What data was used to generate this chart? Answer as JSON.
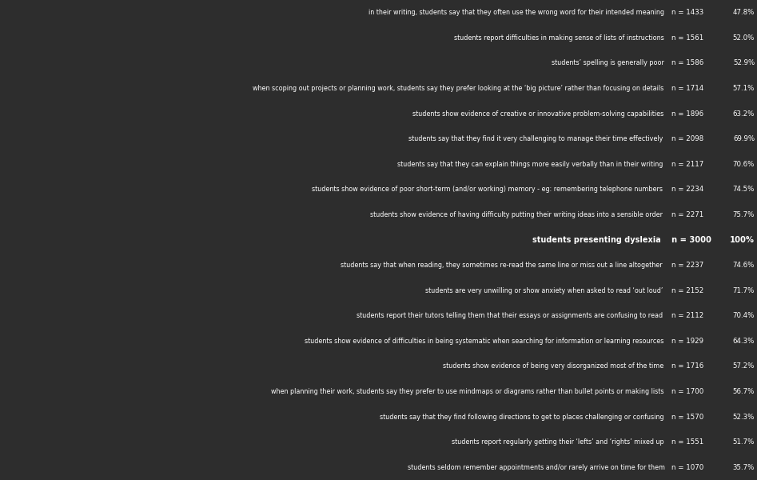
{
  "background_color": "#2d2d2d",
  "bar_color_blue": "#4a7ab5",
  "bar_color_purple": "#7b6fc4",
  "title_row": {
    "label": "students presenting dyslexia",
    "n": "n = 3000",
    "pct": "100%",
    "value": 100.0
  },
  "rows_above": [
    {
      "label": "in their writing, students say that they often use the wrong word for their intended meaning",
      "n": "n = 1433",
      "pct": "47.8%",
      "value": 47.8
    },
    {
      "label": "students report difficulties in making sense of lists of instructions",
      "n": "n = 1561",
      "pct": "52.0%",
      "value": 52.0
    },
    {
      "label": "students’ spelling is generally poor",
      "n": "n = 1586",
      "pct": "52.9%",
      "value": 52.9
    },
    {
      "label": "when scoping out projects or planning work, students say they prefer looking at the ‘big picture’ rather than focusing on details",
      "n": "n = 1714",
      "pct": "57.1%",
      "value": 57.1
    },
    {
      "label": "students show evidence of creative or innovative problem-solving capabilities",
      "n": "n = 1896",
      "pct": "63.2%",
      "value": 63.2
    },
    {
      "label": "students say that they find it very challenging to manage their time effectively",
      "n": "n = 2098",
      "pct": "69.9%",
      "value": 69.9
    },
    {
      "label": "students say that they can explain things more easily verbally than in their writing",
      "n": "n = 2117",
      "pct": "70.6%",
      "value": 70.6
    },
    {
      "label": "students show evidence of poor short-term (and/or working) memory - eg: remembering telephone numbers",
      "n": "n = 2234",
      "pct": "74.5%",
      "value": 74.5
    },
    {
      "label": "students show evidence of having difficulty putting their writing ideas into a sensible order",
      "n": "n = 2271",
      "pct": "75.7%",
      "value": 75.7
    }
  ],
  "rows_below": [
    {
      "label": "students say that when reading, they sometimes re-read the same line or miss out a line altogether",
      "n": "n = 2237",
      "pct": "74.6%",
      "value": 74.6
    },
    {
      "label": "students are very unwilling or show anxiety when asked to read ‘out loud’",
      "n": "n = 2152",
      "pct": "71.7%",
      "value": 71.7
    },
    {
      "label": "students report their tutors telling them that their essays or assignments are confusing to read",
      "n": "n = 2112",
      "pct": "70.4%",
      "value": 70.4
    },
    {
      "label": "students show evidence of difficulties in being systematic when searching for information or learning resources",
      "n": "n = 1929",
      "pct": "64.3%",
      "value": 64.3
    },
    {
      "label": "students show evidence of being very disorganized most of the time",
      "n": "n = 1716",
      "pct": "57.2%",
      "value": 57.2
    },
    {
      "label": "when planning their work, students say they prefer to use mindmaps or diagrams rather than bullet points or making lists",
      "n": "n = 1700",
      "pct": "56.7%",
      "value": 56.7
    },
    {
      "label": "students say that they find following directions to get to places challenging or confusing",
      "n": "n = 1570",
      "pct": "52.3%",
      "value": 52.3
    },
    {
      "label": "students report regularly getting their ‘lefts’ and ‘rights’ mixed up",
      "n": "n = 1551",
      "pct": "51.7%",
      "value": 51.7
    },
    {
      "label": "students seldom remember appointments and/or rarely arrive on time for them",
      "n": "n = 1070",
      "pct": "35.7%",
      "value": 35.7
    }
  ],
  "fig_width": 9.47,
  "fig_height": 6.0,
  "dpi": 100,
  "bar_label_fontsize": 5.8,
  "title_fontsize": 7.0,
  "n_pct_fontsize": 6.2,
  "title_n_pct_fontsize": 7.2
}
